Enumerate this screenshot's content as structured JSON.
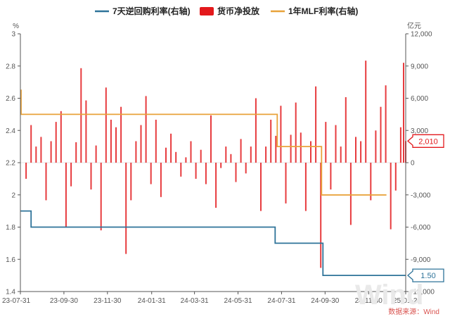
{
  "chart_data": {
    "type": "bar+line",
    "legend": {
      "position": "top",
      "items": [
        {
          "name": "7天逆回购利率(右轴)",
          "color": "#2e7399",
          "marker": "line"
        },
        {
          "name": "货币净投放",
          "color": "#e3191c",
          "marker": "box"
        },
        {
          "name": "1年MLF利率(右轴)",
          "color": "#e8a23a",
          "marker": "line"
        }
      ]
    },
    "left_axis": {
      "unit": "%",
      "min": 1.4,
      "max": 3.0,
      "ticks": [
        "3",
        "2.8",
        "2.6",
        "2.4",
        "2.2",
        "2",
        "1.8",
        "1.6",
        "1.4"
      ]
    },
    "right_axis": {
      "unit": "亿元",
      "min": -12000,
      "max": 12000,
      "ticks": [
        "12,000",
        "9,000",
        "6,000",
        "3,000",
        "0",
        "-3,000",
        "-6,000",
        "-9,000",
        "-12,000"
      ]
    },
    "x_axis": {
      "start": "2023-07-31",
      "end": "2025-01-21",
      "ticks": [
        {
          "date": "2023-07-31",
          "label": "23-07-31"
        },
        {
          "date": "2023-09-30",
          "label": "23-09-30"
        },
        {
          "date": "2023-11-30",
          "label": "23-11-30"
        },
        {
          "date": "2024-01-31",
          "label": "24-01-31"
        },
        {
          "date": "2024-03-31",
          "label": "24-03-31"
        },
        {
          "date": "2024-05-31",
          "label": "24-05-31"
        },
        {
          "date": "2024-07-31",
          "label": "24-07-31"
        },
        {
          "date": "2024-09-30",
          "label": "24-09-30"
        },
        {
          "date": "2024-11-30",
          "label": "24-11-30"
        },
        {
          "date": "2025-01-21",
          "label": "25-01-21"
        }
      ]
    },
    "series": [
      {
        "name": "7天逆回购利率(右轴)",
        "kind": "step-line",
        "axis": "left",
        "color": "#2e7399",
        "points": [
          [
            "2023-07-31",
            1.9
          ],
          [
            "2023-08-15",
            1.8
          ],
          [
            "2024-07-22",
            1.7
          ],
          [
            "2024-09-27",
            1.5
          ],
          [
            "2025-01-21",
            1.5
          ]
        ]
      },
      {
        "name": "1年MLF利率(右轴)",
        "kind": "step-line",
        "axis": "left",
        "color": "#e8a23a",
        "points": [
          [
            "2023-07-31",
            2.65
          ],
          [
            "2023-08-01",
            2.5
          ],
          [
            "2024-07-25",
            2.3
          ],
          [
            "2024-09-25",
            2.0
          ],
          [
            "2024-12-25",
            2.0
          ]
        ]
      },
      {
        "name": "货币净投放",
        "kind": "bar",
        "axis": "right",
        "color": "#e3191c",
        "points": [
          [
            "2023-08-08",
            -1500
          ],
          [
            "2023-08-15",
            3500
          ],
          [
            "2023-08-22",
            1500
          ],
          [
            "2023-08-29",
            2400
          ],
          [
            "2023-09-05",
            -3500
          ],
          [
            "2023-09-12",
            2000
          ],
          [
            "2023-09-19",
            3800
          ],
          [
            "2023-09-26",
            4800
          ],
          [
            "2023-10-03",
            -6000
          ],
          [
            "2023-10-10",
            -2200
          ],
          [
            "2023-10-17",
            1900
          ],
          [
            "2023-10-24",
            8800
          ],
          [
            "2023-10-31",
            5800
          ],
          [
            "2023-11-07",
            -2500
          ],
          [
            "2023-11-14",
            1600
          ],
          [
            "2023-11-21",
            -6300
          ],
          [
            "2023-11-28",
            7000
          ],
          [
            "2023-12-05",
            4000
          ],
          [
            "2023-12-12",
            3300
          ],
          [
            "2023-12-19",
            5200
          ],
          [
            "2023-12-26",
            -8500
          ],
          [
            "2024-01-02",
            -3500
          ],
          [
            "2024-01-09",
            2000
          ],
          [
            "2024-01-16",
            3500
          ],
          [
            "2024-01-23",
            6200
          ],
          [
            "2024-01-30",
            -2000
          ],
          [
            "2024-02-06",
            4000
          ],
          [
            "2024-02-13",
            -3200
          ],
          [
            "2024-02-20",
            1400
          ],
          [
            "2024-02-27",
            2700
          ],
          [
            "2024-03-05",
            1000
          ],
          [
            "2024-03-12",
            -1300
          ],
          [
            "2024-03-19",
            500
          ],
          [
            "2024-03-26",
            2000
          ],
          [
            "2024-04-02",
            -1500
          ],
          [
            "2024-04-09",
            1200
          ],
          [
            "2024-04-16",
            -2000
          ],
          [
            "2024-04-23",
            4400
          ],
          [
            "2024-04-30",
            -4200
          ],
          [
            "2024-05-07",
            -500
          ],
          [
            "2024-05-14",
            1500
          ],
          [
            "2024-05-21",
            800
          ],
          [
            "2024-05-28",
            -1800
          ],
          [
            "2024-06-04",
            2200
          ],
          [
            "2024-06-11",
            -1000
          ],
          [
            "2024-06-18",
            1500
          ],
          [
            "2024-06-25",
            6000
          ],
          [
            "2024-07-02",
            -4500
          ],
          [
            "2024-07-09",
            1500
          ],
          [
            "2024-07-16",
            4000
          ],
          [
            "2024-07-23",
            2500
          ],
          [
            "2024-07-30",
            5300
          ],
          [
            "2024-08-06",
            -3800
          ],
          [
            "2024-08-13",
            2600
          ],
          [
            "2024-08-20",
            5600
          ],
          [
            "2024-08-27",
            2800
          ],
          [
            "2024-09-03",
            -4500
          ],
          [
            "2024-09-10",
            2000
          ],
          [
            "2024-09-17",
            7100
          ],
          [
            "2024-09-24",
            -9800
          ],
          [
            "2024-10-01",
            3800
          ],
          [
            "2024-10-08",
            -2500
          ],
          [
            "2024-10-15",
            3500
          ],
          [
            "2024-10-22",
            1500
          ],
          [
            "2024-10-29",
            6100
          ],
          [
            "2024-11-05",
            -5800
          ],
          [
            "2024-11-12",
            2400
          ],
          [
            "2024-11-19",
            2000
          ],
          [
            "2024-11-26",
            9500
          ],
          [
            "2024-12-03",
            -3500
          ],
          [
            "2024-12-10",
            3000
          ],
          [
            "2024-12-17",
            5200
          ],
          [
            "2024-12-24",
            7200
          ],
          [
            "2024-12-31",
            -6200
          ],
          [
            "2025-01-07",
            -2600
          ],
          [
            "2025-01-14",
            3300
          ],
          [
            "2025-01-18",
            9300
          ],
          [
            "2025-01-21",
            2010
          ]
        ]
      }
    ],
    "callouts": [
      {
        "label": "2,010",
        "axis": "right",
        "value": 2010,
        "color": "#e3191c"
      },
      {
        "label": "1.50",
        "axis": "left",
        "value": 1.5,
        "color": "#2e7399"
      }
    ],
    "source_note": "数据来源：Wind",
    "watermark": "Wind"
  }
}
